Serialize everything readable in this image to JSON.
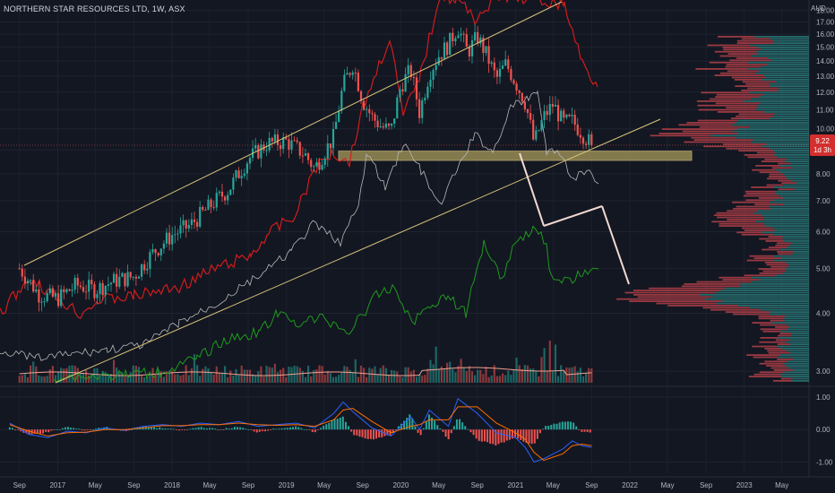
{
  "header": {
    "title": "NORTHERN STAR RESOURCES LTD, 1W, ASX",
    "currency": "AUD"
  },
  "price_badge": {
    "price": "9.22",
    "countdown": "1d 3h"
  },
  "colors": {
    "background": "#131722",
    "up": "#26a69a",
    "down": "#ef5350",
    "channel": "#d8c47a",
    "zone": "#a89a5a",
    "forecast": "#f0d8d0",
    "red_line": "#d01c1c",
    "white_line": "#b8b8b8",
    "green_line": "#1e9a1e",
    "volume_ma": "#f0a090",
    "macd": "#2962ff",
    "signal": "#ff6d00"
  },
  "chart_data": [
    {
      "type": "candlestick",
      "title": "NORTHERN STAR RESOURCES LTD, 1W, ASX",
      "x_axis": {
        "tick_labels": [
          "Sep",
          "2017",
          "May",
          "Sep",
          "2018",
          "May",
          "Sep",
          "2019",
          "May",
          "Sep",
          "2020",
          "May",
          "Sep",
          "2021",
          "May",
          "Sep",
          "2022",
          "May",
          "Sep",
          "2023",
          "May"
        ]
      },
      "y_axis": {
        "scale": "log",
        "unit": "AUD",
        "tick_labels": [
          "18.00",
          "17.00",
          "16.00",
          "15.00",
          "14.00",
          "13.00",
          "12.00",
          "11.00",
          "10.00",
          "9.00",
          "8.00",
          "7.00",
          "6.00",
          "5.00",
          "4.00",
          "3.00"
        ],
        "range": [
          2.8,
          18
        ]
      },
      "last_price": 9.22,
      "series": [
        {
          "kind": "close_approx",
          "dates": [
            "2016-09",
            "2016-11",
            "2017-01",
            "2017-03",
            "2017-05",
            "2017-07",
            "2017-09",
            "2017-11",
            "2018-01",
            "2018-03",
            "2018-05",
            "2018-07",
            "2018-09",
            "2018-11",
            "2019-01",
            "2019-03",
            "2019-04",
            "2019-06",
            "2019-07",
            "2019-08",
            "2019-09",
            "2019-10",
            "2019-11",
            "2019-12",
            "2020-01",
            "2020-02",
            "2020-03",
            "2020-04",
            "2020-05",
            "2020-06",
            "2020-07",
            "2020-08",
            "2020-09",
            "2020-10",
            "2020-11",
            "2020-12",
            "2021-01",
            "2021-02",
            "2021-03",
            "2021-04",
            "2021-05",
            "2021-06",
            "2021-07",
            "2021-08",
            "2021-09"
          ],
          "values": [
            5.0,
            4.4,
            4.3,
            4.6,
            4.5,
            4.7,
            4.8,
            5.4,
            5.9,
            6.2,
            6.8,
            7.4,
            8.6,
            9.3,
            9.4,
            8.8,
            8.2,
            9.6,
            12.4,
            13.8,
            11.5,
            10.6,
            10.1,
            9.9,
            12.4,
            13.4,
            10.8,
            13.2,
            14.4,
            15.2,
            16.6,
            14.6,
            15.8,
            14.4,
            12.8,
            13.8,
            12.6,
            11.4,
            9.3,
            10.6,
            11.3,
            10.3,
            10.4,
            9.8,
            9.22
          ]
        }
      ],
      "overlays": [
        {
          "name": "upper channel",
          "type": "trendline"
        },
        {
          "name": "lower channel",
          "type": "trendline"
        },
        {
          "name": "support zone",
          "type": "rectangle",
          "range": [
            8.55,
            8.95
          ]
        },
        {
          "name": "forecast path",
          "type": "trendline"
        }
      ]
    },
    {
      "type": "line",
      "name": "MACD",
      "y_axis": {
        "tick_labels": [
          "1.00",
          "0.00",
          "-1.00"
        ],
        "range": [
          -1.35,
          1.25
        ]
      },
      "series": [
        {
          "name": "MACD",
          "dates": [
            "2016-08",
            "2016-10",
            "2016-12",
            "2017-02",
            "2017-04",
            "2017-06",
            "2017-08",
            "2017-10",
            "2017-12",
            "2018-02",
            "2018-04",
            "2018-06",
            "2018-08",
            "2018-10",
            "2018-12",
            "2019-02",
            "2019-04",
            "2019-06",
            "2019-07",
            "2019-08",
            "2019-10",
            "2019-12",
            "2020-02",
            "2020-03",
            "2020-04",
            "2020-06",
            "2020-07",
            "2020-09",
            "2020-11",
            "2021-01",
            "2021-02",
            "2021-03",
            "2021-04",
            "2021-06",
            "2021-07",
            "2021-08",
            "2021-09"
          ],
          "values": [
            0.2,
            -0.15,
            -0.25,
            -0.05,
            -0.1,
            0.05,
            -0.03,
            0.1,
            0.15,
            0.1,
            0.2,
            0.15,
            0.25,
            0.1,
            0.15,
            0.2,
            0.05,
            0.5,
            0.85,
            0.55,
            0.05,
            -0.2,
            0.4,
            0.0,
            0.6,
            0.1,
            0.95,
            0.5,
            -0.1,
            -0.25,
            -0.55,
            -1.0,
            -0.9,
            -0.6,
            -0.35,
            -0.5,
            -0.55
          ]
        },
        {
          "name": "Signal",
          "dates": [
            "2016-08",
            "2016-10",
            "2016-12",
            "2017-02",
            "2017-04",
            "2017-06",
            "2017-08",
            "2017-10",
            "2017-12",
            "2018-02",
            "2018-04",
            "2018-06",
            "2018-08",
            "2018-10",
            "2018-12",
            "2019-02",
            "2019-04",
            "2019-06",
            "2019-07",
            "2019-08",
            "2019-10",
            "2019-12",
            "2020-02",
            "2020-03",
            "2020-04",
            "2020-06",
            "2020-07",
            "2020-09",
            "2020-11",
            "2021-01",
            "2021-02",
            "2021-03",
            "2021-04",
            "2021-06",
            "2021-07",
            "2021-08",
            "2021-09"
          ],
          "values": [
            0.15,
            -0.05,
            -0.2,
            -0.1,
            -0.08,
            0.0,
            0.0,
            0.05,
            0.12,
            0.12,
            0.15,
            0.15,
            0.2,
            0.15,
            0.13,
            0.15,
            0.1,
            0.3,
            0.6,
            0.65,
            0.25,
            -0.1,
            0.1,
            0.15,
            0.3,
            0.3,
            0.7,
            0.7,
            0.2,
            -0.1,
            -0.3,
            -0.7,
            -0.95,
            -0.75,
            -0.5,
            -0.45,
            -0.5
          ]
        }
      ]
    }
  ]
}
